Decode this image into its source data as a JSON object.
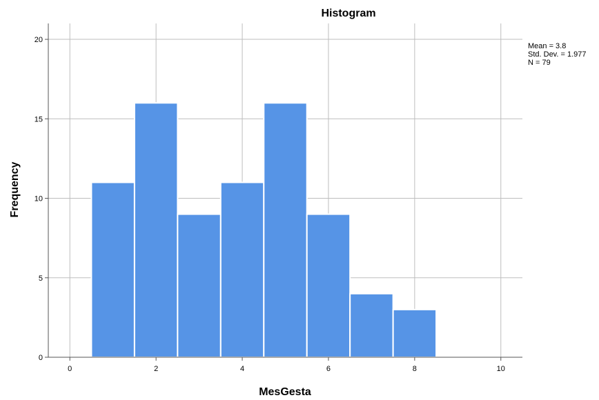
{
  "chart_data": {
    "type": "bar",
    "title": "Histogram",
    "xlabel": "MesGesta",
    "ylabel": "Frequency",
    "xlim": [
      -0.5,
      10.5
    ],
    "ylim": [
      0,
      21
    ],
    "x_ticks": [
      0,
      2,
      4,
      6,
      8,
      10
    ],
    "y_ticks": [
      0,
      5,
      10,
      15,
      20
    ],
    "grid": true,
    "bins": [
      {
        "start": 0.5,
        "end": 1.5,
        "value": 11
      },
      {
        "start": 1.5,
        "end": 2.5,
        "value": 16
      },
      {
        "start": 2.5,
        "end": 3.5,
        "value": 9
      },
      {
        "start": 3.5,
        "end": 4.5,
        "value": 11
      },
      {
        "start": 4.5,
        "end": 5.5,
        "value": 16
      },
      {
        "start": 5.5,
        "end": 6.5,
        "value": 9
      },
      {
        "start": 6.5,
        "end": 7.5,
        "value": 4
      },
      {
        "start": 7.5,
        "end": 8.5,
        "value": 3
      }
    ],
    "bar_color": "#5694e6",
    "stats": {
      "mean": "Mean = 3.8",
      "std_dev": "Std. Dev. = 1.977",
      "n": "N = 79"
    },
    "legend_position": "top-right"
  }
}
